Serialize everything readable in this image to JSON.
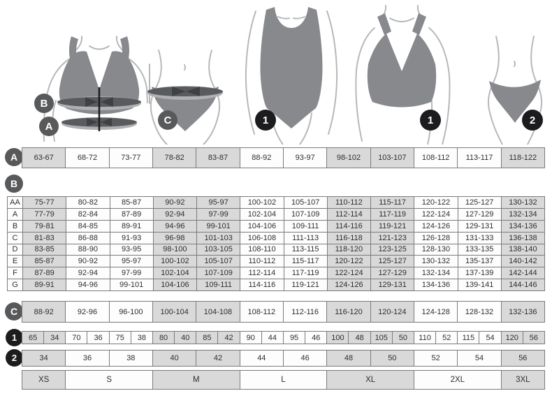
{
  "colors": {
    "cell_shaded": "#d9d9d9",
    "cell_white": "#fdfdfd",
    "border": "#7b7b7b",
    "text": "#2e2e2e",
    "badge_grey": "#58595b",
    "badge_black": "#1c1c1e",
    "garment": "#87898c",
    "measure_band": "#5a5b5e",
    "measure_band_light": "#aeb0b2",
    "figure_outline": "#b6b8ba",
    "arrow": "#404144",
    "center_line": "#1b1b1b"
  },
  "figures": {
    "bra_measure": {
      "badge_top": "B",
      "badge_bottom": "A"
    },
    "panty_measure": {
      "badge": "C"
    },
    "bodysuit": {
      "badge": "1"
    },
    "bra": {
      "badge": "1"
    },
    "panty": {
      "badge": "2"
    }
  },
  "row_a": {
    "label": "A",
    "cells": [
      "63-67",
      "68-72",
      "73-77",
      "78-82",
      "83-87",
      "88-92",
      "93-97",
      "98-102",
      "103-107",
      "108-112",
      "113-117",
      "118-122"
    ]
  },
  "table_b": {
    "label": "B",
    "rows": [
      {
        "label": "AA",
        "cells": [
          "75-77",
          "80-82",
          "85-87",
          "90-92",
          "95-97",
          "100-102",
          "105-107",
          "110-112",
          "115-117",
          "120-122",
          "125-127",
          "130-132"
        ]
      },
      {
        "label": "A",
        "cells": [
          "77-79",
          "82-84",
          "87-89",
          "92-94",
          "97-99",
          "102-104",
          "107-109",
          "112-114",
          "117-119",
          "122-124",
          "127-129",
          "132-134"
        ]
      },
      {
        "label": "B",
        "cells": [
          "79-81",
          "84-85",
          "89-91",
          "94-96",
          "99-101",
          "104-106",
          "109-111",
          "114-116",
          "119-121",
          "124-126",
          "129-131",
          "134-136"
        ]
      },
      {
        "label": "C",
        "cells": [
          "81-83",
          "86-88",
          "91-93",
          "96-98",
          "101-103",
          "106-108",
          "111-113",
          "116-118",
          "121-123",
          "126-128",
          "131-133",
          "136-138"
        ]
      },
      {
        "label": "D",
        "cells": [
          "83-85",
          "88-90",
          "93-95",
          "98-100",
          "103-105",
          "108-110",
          "113-115",
          "118-120",
          "123-125",
          "128-130",
          "133-135",
          "138-140"
        ]
      },
      {
        "label": "E",
        "cells": [
          "85-87",
          "90-92",
          "95-97",
          "100-102",
          "105-107",
          "110-112",
          "115-117",
          "120-122",
          "125-127",
          "130-132",
          "135-137",
          "140-142"
        ]
      },
      {
        "label": "F",
        "cells": [
          "87-89",
          "92-94",
          "97-99",
          "102-104",
          "107-109",
          "112-114",
          "117-119",
          "122-124",
          "127-129",
          "132-134",
          "137-139",
          "142-144"
        ]
      },
      {
        "label": "G",
        "cells": [
          "89-91",
          "94-96",
          "99-101",
          "104-106",
          "109-111",
          "114-116",
          "119-121",
          "124-126",
          "129-131",
          "134-136",
          "139-141",
          "144-146"
        ]
      }
    ]
  },
  "row_c": {
    "label": "C",
    "cells": [
      "88-92",
      "92-96",
      "96-100",
      "100-104",
      "104-108",
      "108-112",
      "112-116",
      "116-120",
      "120-124",
      "124-128",
      "128-132",
      "132-136"
    ]
  },
  "row_1": {
    "label": "1",
    "cells": [
      "65",
      "34",
      "70",
      "36",
      "75",
      "38",
      "80",
      "40",
      "85",
      "42",
      "90",
      "44",
      "95",
      "46",
      "100",
      "48",
      "105",
      "50",
      "110",
      "52",
      "115",
      "54",
      "120",
      "56"
    ]
  },
  "row_2": {
    "label": "2",
    "cells": [
      "34",
      "36",
      "38",
      "40",
      "42",
      "44",
      "46",
      "48",
      "50",
      "52",
      "54",
      "56"
    ]
  },
  "size_row": {
    "cells": [
      {
        "label": "XS",
        "span": 1
      },
      {
        "label": "S",
        "span": 2
      },
      {
        "label": "M",
        "span": 2
      },
      {
        "label": "L",
        "span": 2
      },
      {
        "label": "XL",
        "span": 2
      },
      {
        "label": "2XL",
        "span": 2
      },
      {
        "label": "3XL",
        "span": 1
      }
    ]
  }
}
